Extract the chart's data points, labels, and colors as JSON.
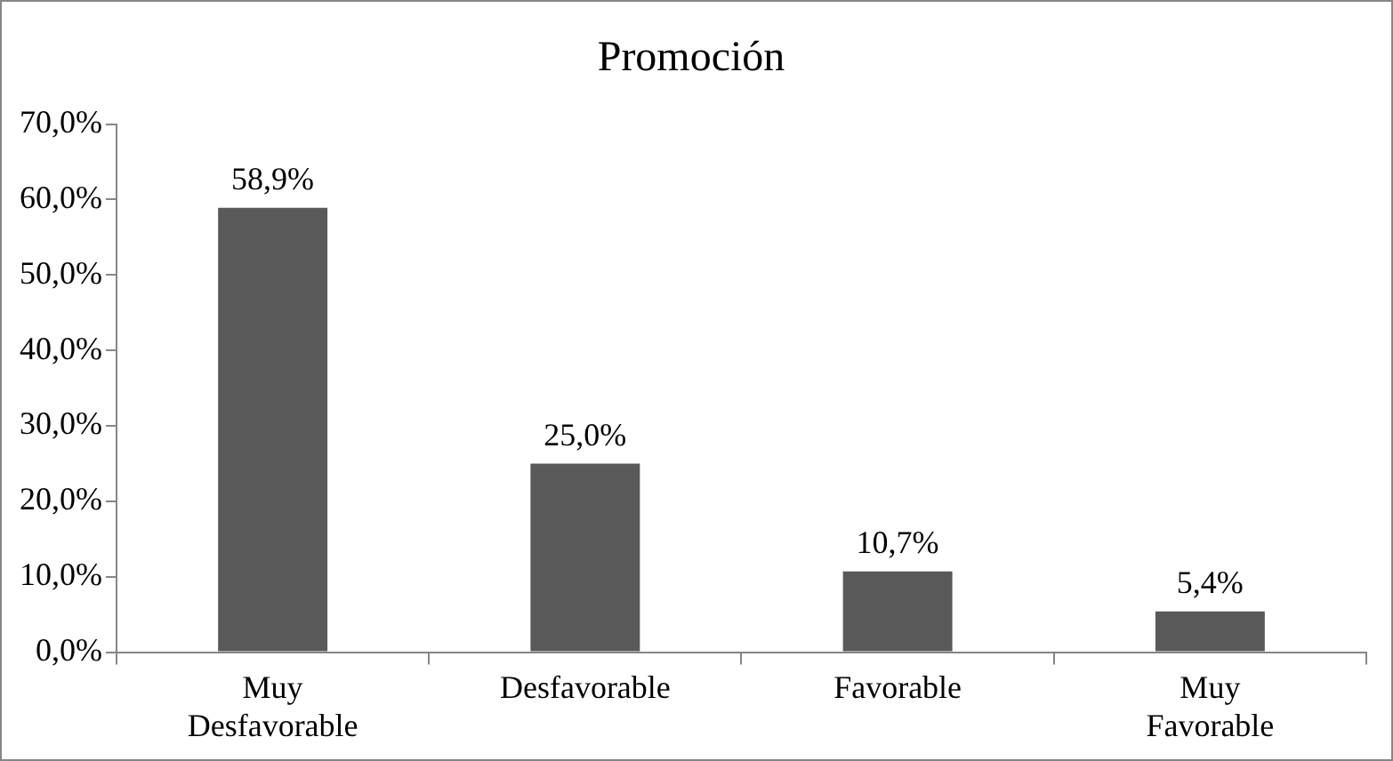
{
  "chart_data": {
    "type": "bar",
    "title": "Promoción",
    "categories": [
      "Muy Desfavorable",
      "Desfavorable",
      "Favorable",
      "Muy Favorable"
    ],
    "values": [
      58.9,
      25.0,
      10.7,
      5.4
    ],
    "value_labels": [
      "58,9%",
      "25,0%",
      "10,7%",
      "5,4%"
    ],
    "color": "#595959",
    "ylim": [
      0,
      70
    ],
    "yticks": [
      {
        "value": 0,
        "label": "0,0%"
      },
      {
        "value": 10,
        "label": "10,0%"
      },
      {
        "value": 20,
        "label": "20,0%"
      },
      {
        "value": 30,
        "label": "30,0%"
      },
      {
        "value": 40,
        "label": "40,0%"
      },
      {
        "value": 50,
        "label": "50,0%"
      },
      {
        "value": 60,
        "label": "60,0%"
      },
      {
        "value": 70,
        "label": "70,0%"
      }
    ],
    "legend": false
  }
}
